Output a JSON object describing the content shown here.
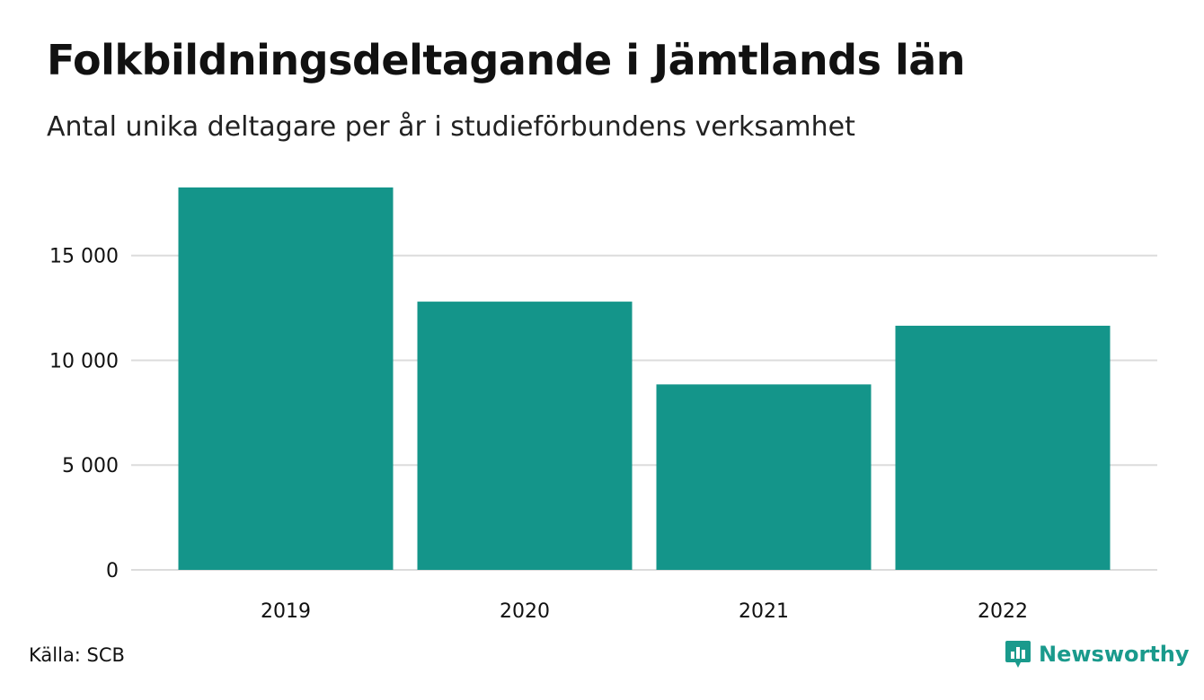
{
  "title": "Folkbildningsdeltagande i Jämtlands län",
  "subtitle": "Antal unika deltagare per år i studieförbundens verksamhet",
  "source": "Källa: SCB",
  "brand": "Newsworthy",
  "colors": {
    "bar": "#14958a",
    "grid": "#dcdcdc",
    "brand": "#1a9a8c"
  },
  "chart_data": {
    "type": "bar",
    "categories": [
      "2019",
      "2020",
      "2021",
      "2022"
    ],
    "values": [
      18250,
      12800,
      8850,
      11650
    ],
    "ylim": [
      0,
      18500
    ],
    "yticks": [
      0,
      5000,
      10000,
      15000
    ],
    "ytick_labels": [
      "0",
      "5 000",
      "10 000",
      "15 000"
    ],
    "grid": true
  }
}
